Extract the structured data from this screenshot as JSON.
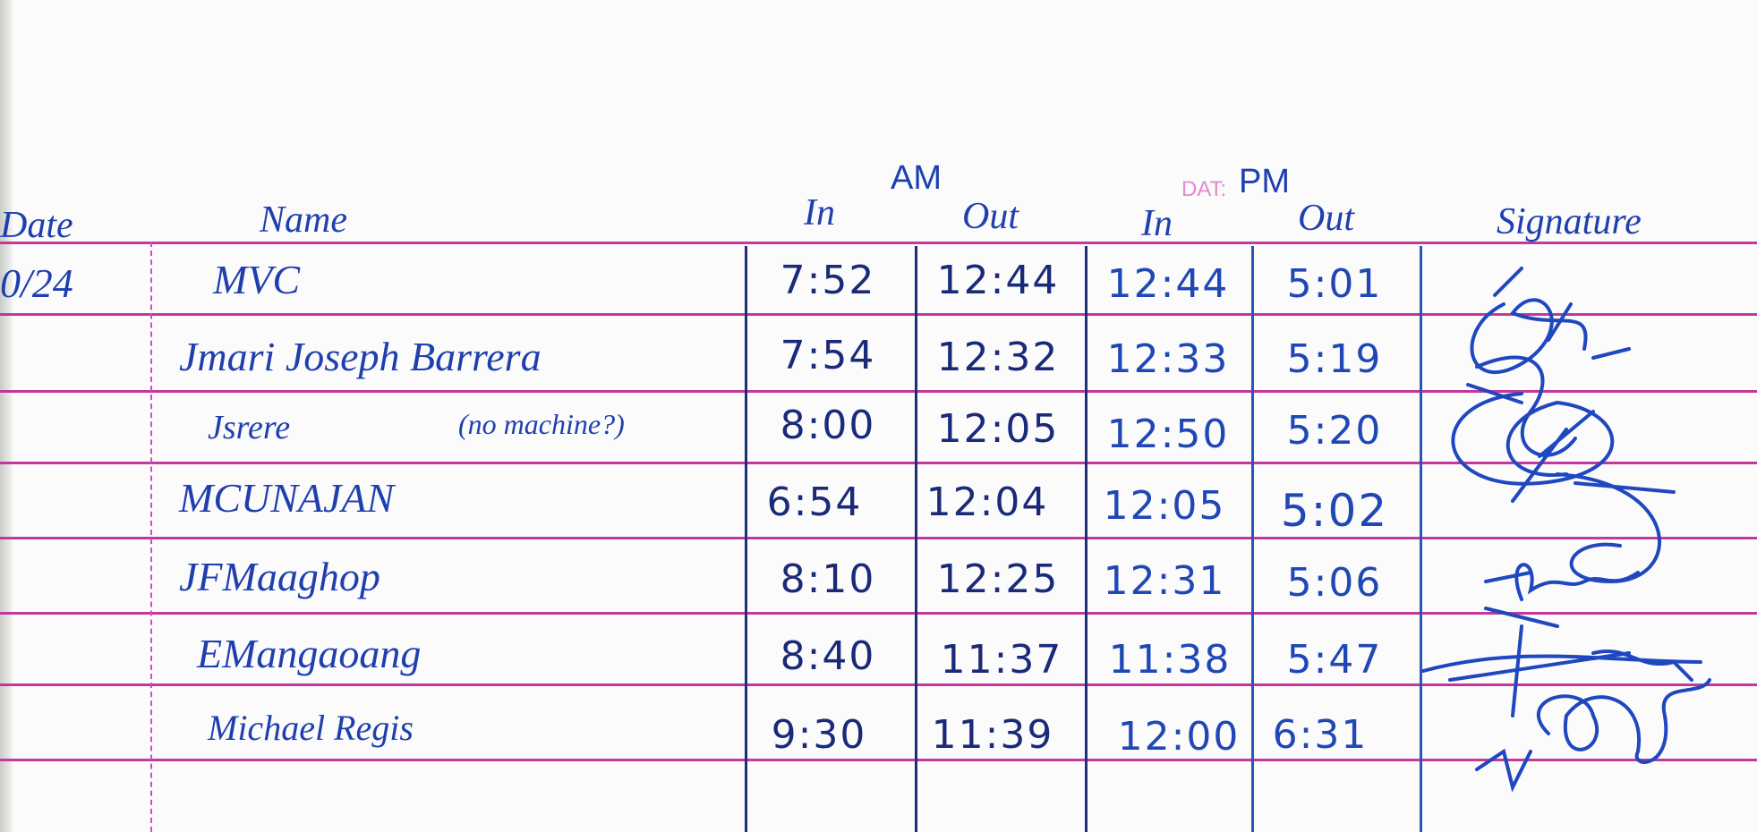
{
  "sheet": {
    "headers": {
      "date": "Date",
      "name": "Name",
      "am": "AM",
      "pm": "PM",
      "am_in": "In",
      "am_out": "Out",
      "pm_in": "In",
      "pm_out": "Out",
      "signature": "Signature",
      "stamp": "DAT:"
    },
    "date": "0/24",
    "rows": [
      {
        "name": "MVC",
        "note": "",
        "am_in": "7:52",
        "am_out": "12:44",
        "pm_in": "12:44",
        "pm_out": "5:01"
      },
      {
        "name": "Jmari Joseph Barrera",
        "note": "",
        "am_in": "7:54",
        "am_out": "12:32",
        "pm_in": "12:33",
        "pm_out": "5:19"
      },
      {
        "name": "Jsrere",
        "note": "(no machine?)",
        "am_in": "8:00",
        "am_out": "12:05",
        "pm_in": "12:50",
        "pm_out": "5:20"
      },
      {
        "name": "MCUNAJAN",
        "note": "",
        "am_in": "6:54",
        "am_out": "12:04",
        "pm_in": "12:05",
        "pm_out": "5:02"
      },
      {
        "name": "JFMaaghop",
        "note": "",
        "am_in": "8:10",
        "am_out": "12:25",
        "pm_in": "12:31",
        "pm_out": "5:06"
      },
      {
        "name": "EMangaoang",
        "note": "",
        "am_in": "8:40",
        "am_out": "11:37",
        "pm_in": "11:38",
        "pm_out": "5:47"
      },
      {
        "name": "Michael Regis",
        "note": "",
        "am_in": "9:30",
        "am_out": "11:39",
        "pm_in": "12:00",
        "pm_out": "6:31"
      }
    ],
    "ink_color": "#1f3fae",
    "rule_color": "#c2389c"
  }
}
